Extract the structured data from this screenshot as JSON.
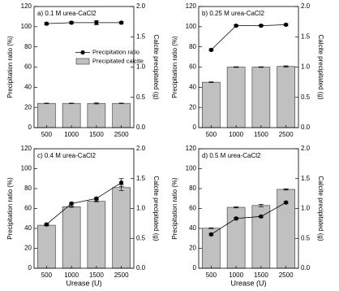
{
  "chart_data": [
    {
      "type": "combo",
      "title": "a) 0.1 M urea-CaCl2",
      "categories": [
        "500",
        "1000",
        "1500",
        "2500"
      ],
      "ylabel": "Precipitation ratio (%)",
      "y2label": "Calcite precipitated (g)",
      "ylim": [
        0,
        120
      ],
      "yticks": [
        0,
        20,
        40,
        60,
        80,
        100,
        120
      ],
      "y2lim": [
        0,
        2
      ],
      "y2ticks": [
        {
          "value": 0,
          "label": "0.0"
        },
        0.5,
        {
          "value": 1,
          "label": "1.0"
        },
        1.5,
        {
          "value": 2,
          "label": "2.0"
        }
      ],
      "legend": "center right",
      "series": [
        {
          "name": "Precipitation ratio",
          "kind": "line",
          "color": "#000000",
          "values": [
            103,
            104,
            104,
            104
          ],
          "errors": [
            1,
            1,
            2,
            1
          ]
        },
        {
          "name": "Precipitated calcite",
          "kind": "bar",
          "axis": "y2",
          "color": "#c0c0c0",
          "values": [
            0.4,
            0.4,
            0.4,
            0.4
          ],
          "errors": [
            0.005,
            0.005,
            0.01,
            0.005
          ]
        }
      ]
    },
    {
      "type": "combo",
      "title": "b) 0.25 M urea-CaCl2",
      "categories": [
        "500",
        "1000",
        "1500",
        "2500"
      ],
      "ylabel": "Precipitation ratio (%)",
      "y2label": "Calcite precipitated (g)",
      "ylim": [
        0,
        120
      ],
      "yticks": [
        0,
        20,
        40,
        60,
        80,
        100,
        120
      ],
      "y2lim": [
        0,
        2
      ],
      "y2ticks": [
        {
          "value": 0,
          "label": "0.0"
        },
        0.5,
        {
          "value": 1,
          "label": "1.0"
        },
        1.5,
        {
          "value": 2,
          "label": "2.0"
        }
      ],
      "series": [
        {
          "kind": "line",
          "color": "#000000",
          "values": [
            77,
            101,
            101,
            102
          ],
          "errors": [
            1,
            1,
            1,
            1
          ]
        },
        {
          "kind": "bar",
          "axis": "y2",
          "color": "#c0c0c0",
          "values": [
            0.75,
            1.0,
            1.0,
            1.01
          ],
          "errors": [
            0.005,
            0.005,
            0.005,
            0.01
          ]
        }
      ]
    },
    {
      "type": "combo",
      "title": "c) 0.4 M urea-CaCl2",
      "categories": [
        "500",
        "1000",
        "1500",
        "2500"
      ],
      "xlabel": "Urease (U)",
      "ylabel": "Precipitation ratio (%)",
      "y2label": "Calcite precipitated (g)",
      "ylim": [
        0,
        120
      ],
      "yticks": [
        0,
        20,
        40,
        60,
        80,
        100,
        120
      ],
      "y2lim": [
        0,
        2
      ],
      "y2ticks": [
        {
          "value": 0,
          "label": "0.0"
        },
        0.5,
        {
          "value": 1,
          "label": "1.0"
        },
        1.5,
        {
          "value": 2,
          "label": "2.0"
        }
      ],
      "series": [
        {
          "kind": "line",
          "color": "#000000",
          "values": [
            44,
            65,
            70,
            86
          ],
          "errors": [
            1,
            1,
            1,
            4
          ]
        },
        {
          "kind": "bar",
          "axis": "y2",
          "color": "#c0c0c0",
          "values": [
            0.72,
            1.03,
            1.12,
            1.35
          ],
          "errors": [
            0.01,
            0.01,
            0.01,
            0.05
          ]
        }
      ]
    },
    {
      "type": "combo",
      "title": "d) 0.5 M urea-CaCl2",
      "categories": [
        "500",
        "1000",
        "1500",
        "2500"
      ],
      "xlabel": "Urease (U)",
      "ylabel": "Precipitation ratio (%)",
      "y2label": "Calcite precipitated (g)",
      "ylim": [
        0,
        120
      ],
      "yticks": [
        0,
        20,
        40,
        60,
        80,
        100,
        120
      ],
      "y2lim": [
        0,
        2
      ],
      "y2ticks": [
        {
          "value": 0,
          "label": "0.0"
        },
        0.5,
        {
          "value": 1,
          "label": "1.0"
        },
        1.5,
        {
          "value": 2,
          "label": "2.0"
        }
      ],
      "series": [
        {
          "kind": "line",
          "color": "#000000",
          "values": [
            34,
            50,
            52,
            66
          ],
          "errors": [
            1,
            1,
            1,
            1
          ]
        },
        {
          "kind": "bar",
          "axis": "y2",
          "color": "#c0c0c0",
          "values": [
            0.67,
            1.02,
            1.05,
            1.32
          ],
          "errors": [
            0.005,
            0.01,
            0.02,
            0.01
          ]
        }
      ]
    }
  ]
}
